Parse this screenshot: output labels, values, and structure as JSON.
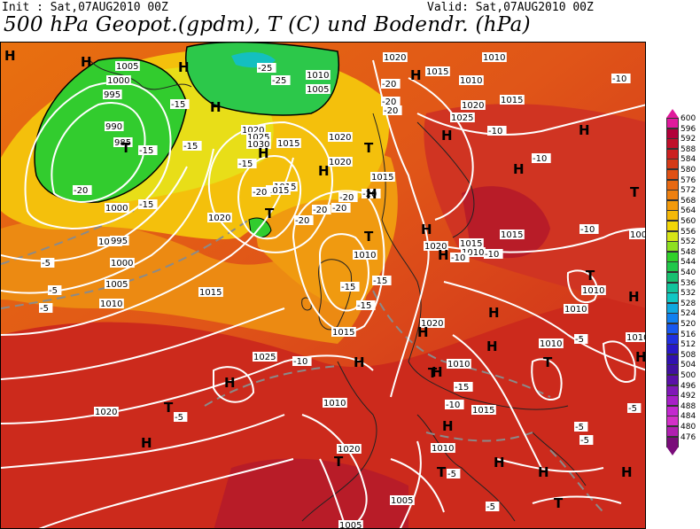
{
  "header": {
    "init": "Init : Sat,07AUG2010 00Z",
    "valid": "Valid: Sat,07AUG2010 00Z",
    "title": "500 hPa Geopot.(gpdm), T (C) und Bodendr. (hPa)"
  },
  "legend": {
    "levels": [
      {
        "label": "600",
        "color": "#e01a9c"
      },
      {
        "label": "596",
        "color": "#b2003a"
      },
      {
        "label": "592",
        "color": "#c0102a"
      },
      {
        "label": "588",
        "color": "#cc2020"
      },
      {
        "label": "584",
        "color": "#d53a18"
      },
      {
        "label": "580",
        "color": "#df5015"
      },
      {
        "label": "576",
        "color": "#e86812"
      },
      {
        "label": "572",
        "color": "#ee8010"
      },
      {
        "label": "568",
        "color": "#f29a0c"
      },
      {
        "label": "564",
        "color": "#f5b808"
      },
      {
        "label": "560",
        "color": "#f2d608"
      },
      {
        "label": "556",
        "color": "#d6e418"
      },
      {
        "label": "552",
        "color": "#8ee020"
      },
      {
        "label": "548",
        "color": "#30d02a"
      },
      {
        "label": "544",
        "color": "#20c84a"
      },
      {
        "label": "540",
        "color": "#18c070"
      },
      {
        "label": "536",
        "color": "#12c49c"
      },
      {
        "label": "532",
        "color": "#10c8c4"
      },
      {
        "label": "528",
        "color": "#10a8e0"
      },
      {
        "label": "524",
        "color": "#1080f0"
      },
      {
        "label": "520",
        "color": "#1858f0"
      },
      {
        "label": "516",
        "color": "#2030e0"
      },
      {
        "label": "512",
        "color": "#2818c8"
      },
      {
        "label": "508",
        "color": "#3010b0"
      },
      {
        "label": "504",
        "color": "#4010a0"
      },
      {
        "label": "500",
        "color": "#5a10a8"
      },
      {
        "label": "496",
        "color": "#8018b8"
      },
      {
        "label": "492",
        "color": "#a820c8"
      },
      {
        "label": "488",
        "color": "#c428d0"
      },
      {
        "label": "484",
        "color": "#d430c8"
      },
      {
        "label": "480",
        "color": "#b020b0"
      },
      {
        "label": "476",
        "color": "#7a0c7a"
      }
    ]
  },
  "map": {
    "pressure_labels": [
      "1005",
      "1000",
      "995",
      "990",
      "985",
      "1000",
      "1005",
      "1020",
      "1015",
      "1015",
      "1010",
      "1005",
      "1020",
      "1025",
      "1030",
      "1015",
      "1020",
      "1010",
      "1020",
      "1015",
      "1025",
      "1020",
      "995",
      "1000",
      "1005",
      "1010",
      "1015",
      "1015",
      "1020",
      "1020",
      "1010",
      "1010",
      "1015",
      "1025",
      "1020",
      "1015",
      "1015",
      "1010",
      "1005",
      "1010",
      "1010",
      "1010",
      "1010",
      "1010",
      "1015",
      "1020",
      "1010",
      "1020",
      "1010",
      "1005",
      "1005",
      "1015"
    ],
    "temp_labels": [
      "-25",
      "-25",
      "-15",
      "-20",
      "-15",
      "-15",
      "-20",
      "-15",
      "-20",
      "-20",
      "-20",
      "-20",
      "-20",
      "-20",
      "-20",
      "-20",
      "-15",
      "-15",
      "-15",
      "-15",
      "-15",
      "-10",
      "-10",
      "-10",
      "-10",
      "-10",
      "-10",
      "-10",
      "-10",
      "-5",
      "-5",
      "-5",
      "-5",
      "-5",
      "-5",
      "-5",
      "-5",
      "-5",
      "-5",
      "-10"
    ],
    "high_symbol": "H",
    "low_symbol": "T"
  }
}
